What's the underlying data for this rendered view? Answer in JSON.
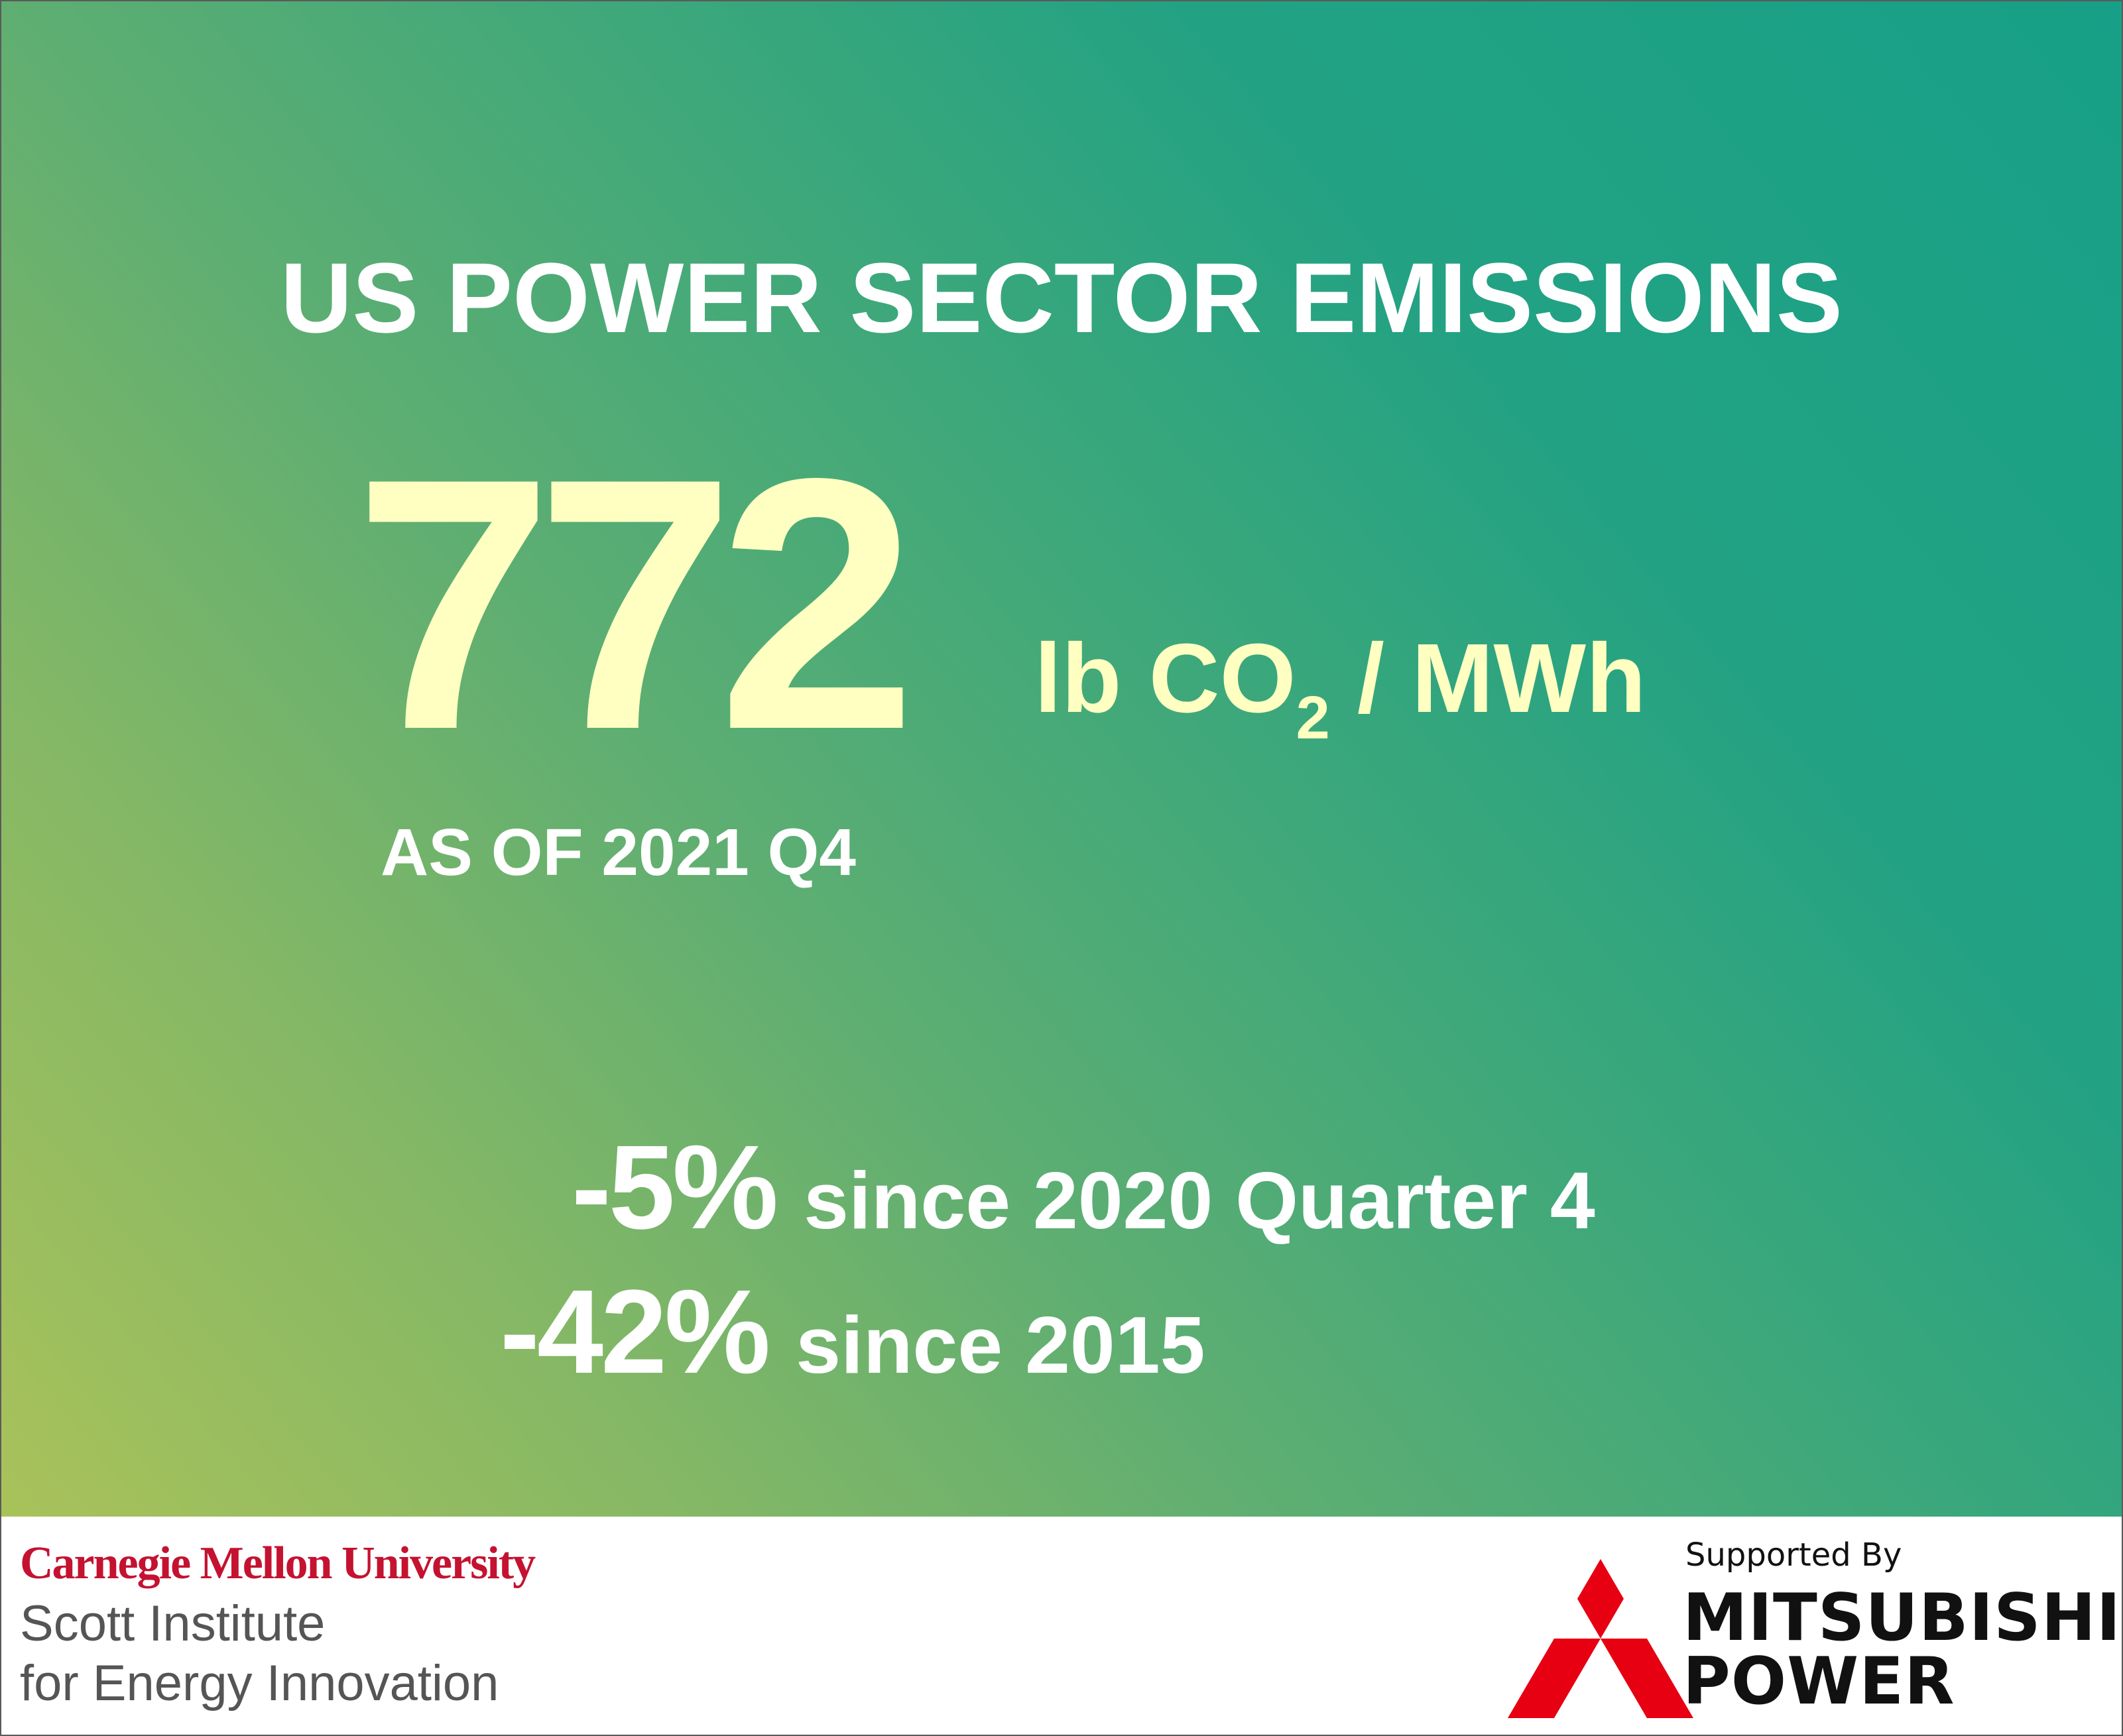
{
  "headline": {
    "title": "US POWER SECTOR EMISSIONS",
    "value": "772",
    "unit_prefix": "lb CO",
    "unit_subscript": "2",
    "unit_suffix": " / MWh",
    "as_of": "AS OF 2021 Q4"
  },
  "stats": [
    {
      "change": "-5%",
      "label": "since 2020 Quarter 4"
    },
    {
      "change": "-42%",
      "label": "since 2015"
    }
  ],
  "footer": {
    "cmu_name": "Carnegie Mellon University",
    "institute_line1": "Scott Institute",
    "institute_line2": "for Energy Innovation",
    "supported_by": "Supported By",
    "sponsor_line1": "MITSUBISHI",
    "sponsor_line2": "POWER",
    "logo_icon": "three-diamonds-logo"
  },
  "colors": {
    "gradient_start": "#a9c25a",
    "gradient_end": "#17a087",
    "value_color": "#ffffc2",
    "cmu_red": "#c41230",
    "mitsubishi_red": "#e60012"
  }
}
